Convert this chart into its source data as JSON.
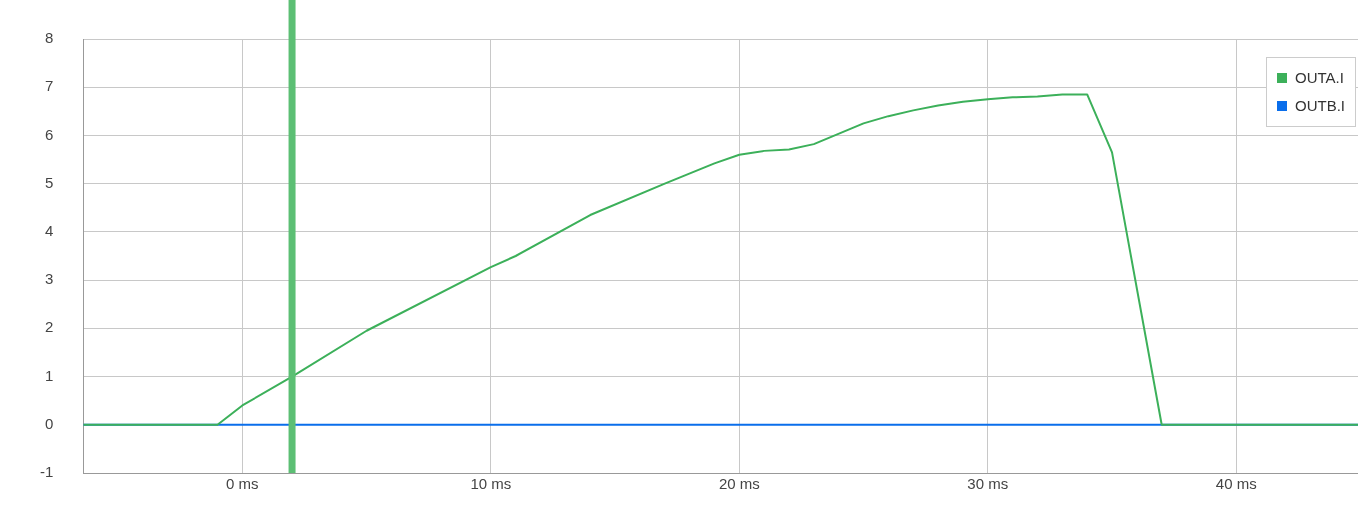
{
  "chart_data": {
    "type": "line",
    "xlim": [
      -6.4,
      44.9
    ],
    "ylim": [
      -1,
      8
    ],
    "xticks": [
      {
        "value": 0,
        "label": "0 ms"
      },
      {
        "value": 10,
        "label": "10 ms"
      },
      {
        "value": 20,
        "label": "20 ms"
      },
      {
        "value": 30,
        "label": "30 ms"
      },
      {
        "value": 40,
        "label": "40 ms"
      }
    ],
    "yticks": [
      -1,
      0,
      1,
      2,
      3,
      4,
      5,
      6,
      7,
      8
    ],
    "series": [
      {
        "name": "OUTA.I",
        "color": "#3cb05a",
        "x": [
          -6.4,
          -1,
          0,
          2,
          5,
          10,
          11,
          14,
          17,
          19,
          20,
          21,
          22,
          23,
          25,
          26,
          27,
          28,
          29,
          30,
          31,
          32,
          33,
          34,
          35,
          37,
          44.9
        ],
        "values": [
          0,
          0,
          0.4,
          1,
          1.95,
          3.27,
          3.5,
          4.35,
          5,
          5.42,
          5.6,
          5.68,
          5.71,
          5.82,
          6.25,
          6.4,
          6.52,
          6.62,
          6.7,
          6.75,
          6.79,
          6.81,
          6.85,
          6.85,
          5.65,
          0,
          0
        ]
      },
      {
        "name": "OUTB.I",
        "color": "#0a6eeb",
        "x": [
          -6.4,
          44.9
        ],
        "values": [
          0,
          0
        ]
      }
    ],
    "ref_lines": [
      {
        "axis": "x",
        "value": 2,
        "color": "#5cbf74"
      }
    ],
    "grid": true,
    "legend": "top right",
    "marker": "none",
    "line_style": "solid"
  }
}
